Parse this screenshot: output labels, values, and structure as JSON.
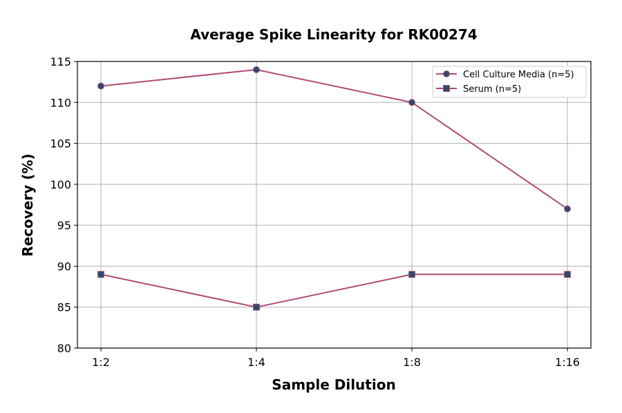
{
  "chart_data": {
    "type": "line",
    "title": "Average Spike Linearity for RK00274",
    "xlabel": "Sample Dilution",
    "ylabel": "Recovery (%)",
    "categories": [
      "1:2",
      "1:4",
      "1:8",
      "1:16"
    ],
    "ylim": [
      80,
      115
    ],
    "yticks": [
      80,
      85,
      90,
      95,
      100,
      105,
      110,
      115
    ],
    "grid": true,
    "legend_position": "top-right",
    "series": [
      {
        "name": "Cell Culture Media (n=5)",
        "values": [
          112,
          114,
          110,
          97
        ],
        "marker": "circle",
        "line_color": "#b04a72",
        "marker_color": "#2e4a6e"
      },
      {
        "name": "Serum (n=5)",
        "values": [
          89,
          85,
          89,
          89
        ],
        "marker": "square",
        "line_color": "#b04a72",
        "marker_color": "#2e4a6e"
      }
    ]
  }
}
